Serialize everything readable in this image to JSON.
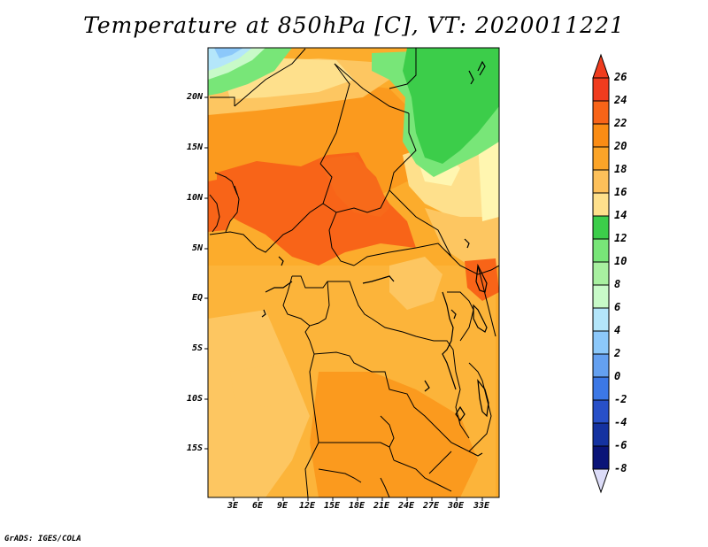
{
  "title": "Temperature at 850hPa [C], VT: 2020011221",
  "credit": "GrADS: IGES/COLA",
  "lat_ticks": [
    "20N",
    "15N",
    "10N",
    "5N",
    "EQ",
    "5S",
    "10S",
    "15S"
  ],
  "lon_ticks": [
    "3E",
    "6E",
    "9E",
    "12E",
    "15E",
    "18E",
    "21E",
    "24E",
    "27E",
    "30E",
    "33E"
  ],
  "colorbar": {
    "labels": [
      "26",
      "24",
      "22",
      "20",
      "18",
      "16",
      "14",
      "12",
      "10",
      "8",
      "6",
      "4",
      "2",
      "0",
      "-2",
      "-4",
      "-6",
      "-8"
    ],
    "colors": [
      "#f03c1e",
      "#f86418",
      "#fa8c14",
      "#fba428",
      "#fdc05a",
      "#fee08c",
      "#fff8b4",
      "#3ccd4a",
      "#78e678",
      "#c8fac8",
      "#b4e6fa",
      "#8cc8fa",
      "#64a0f0",
      "#3c78e6",
      "#2850c8",
      "#1432a0",
      "#0a1478",
      "#dcdcf8"
    ]
  },
  "map_colors": {
    "t26": "#f86418",
    "t24": "#fa7c14",
    "t22": "#fb9a1e",
    "t20": "#fcac2c",
    "t18": "#fdc661",
    "t16": "#fee08c",
    "t14": "#fff6b0",
    "green12": "#3ccd4a",
    "green10": "#78e678",
    "green8": "#c8fac8",
    "blue6": "#b4e6fa",
    "blue4": "#8cc8fa"
  }
}
